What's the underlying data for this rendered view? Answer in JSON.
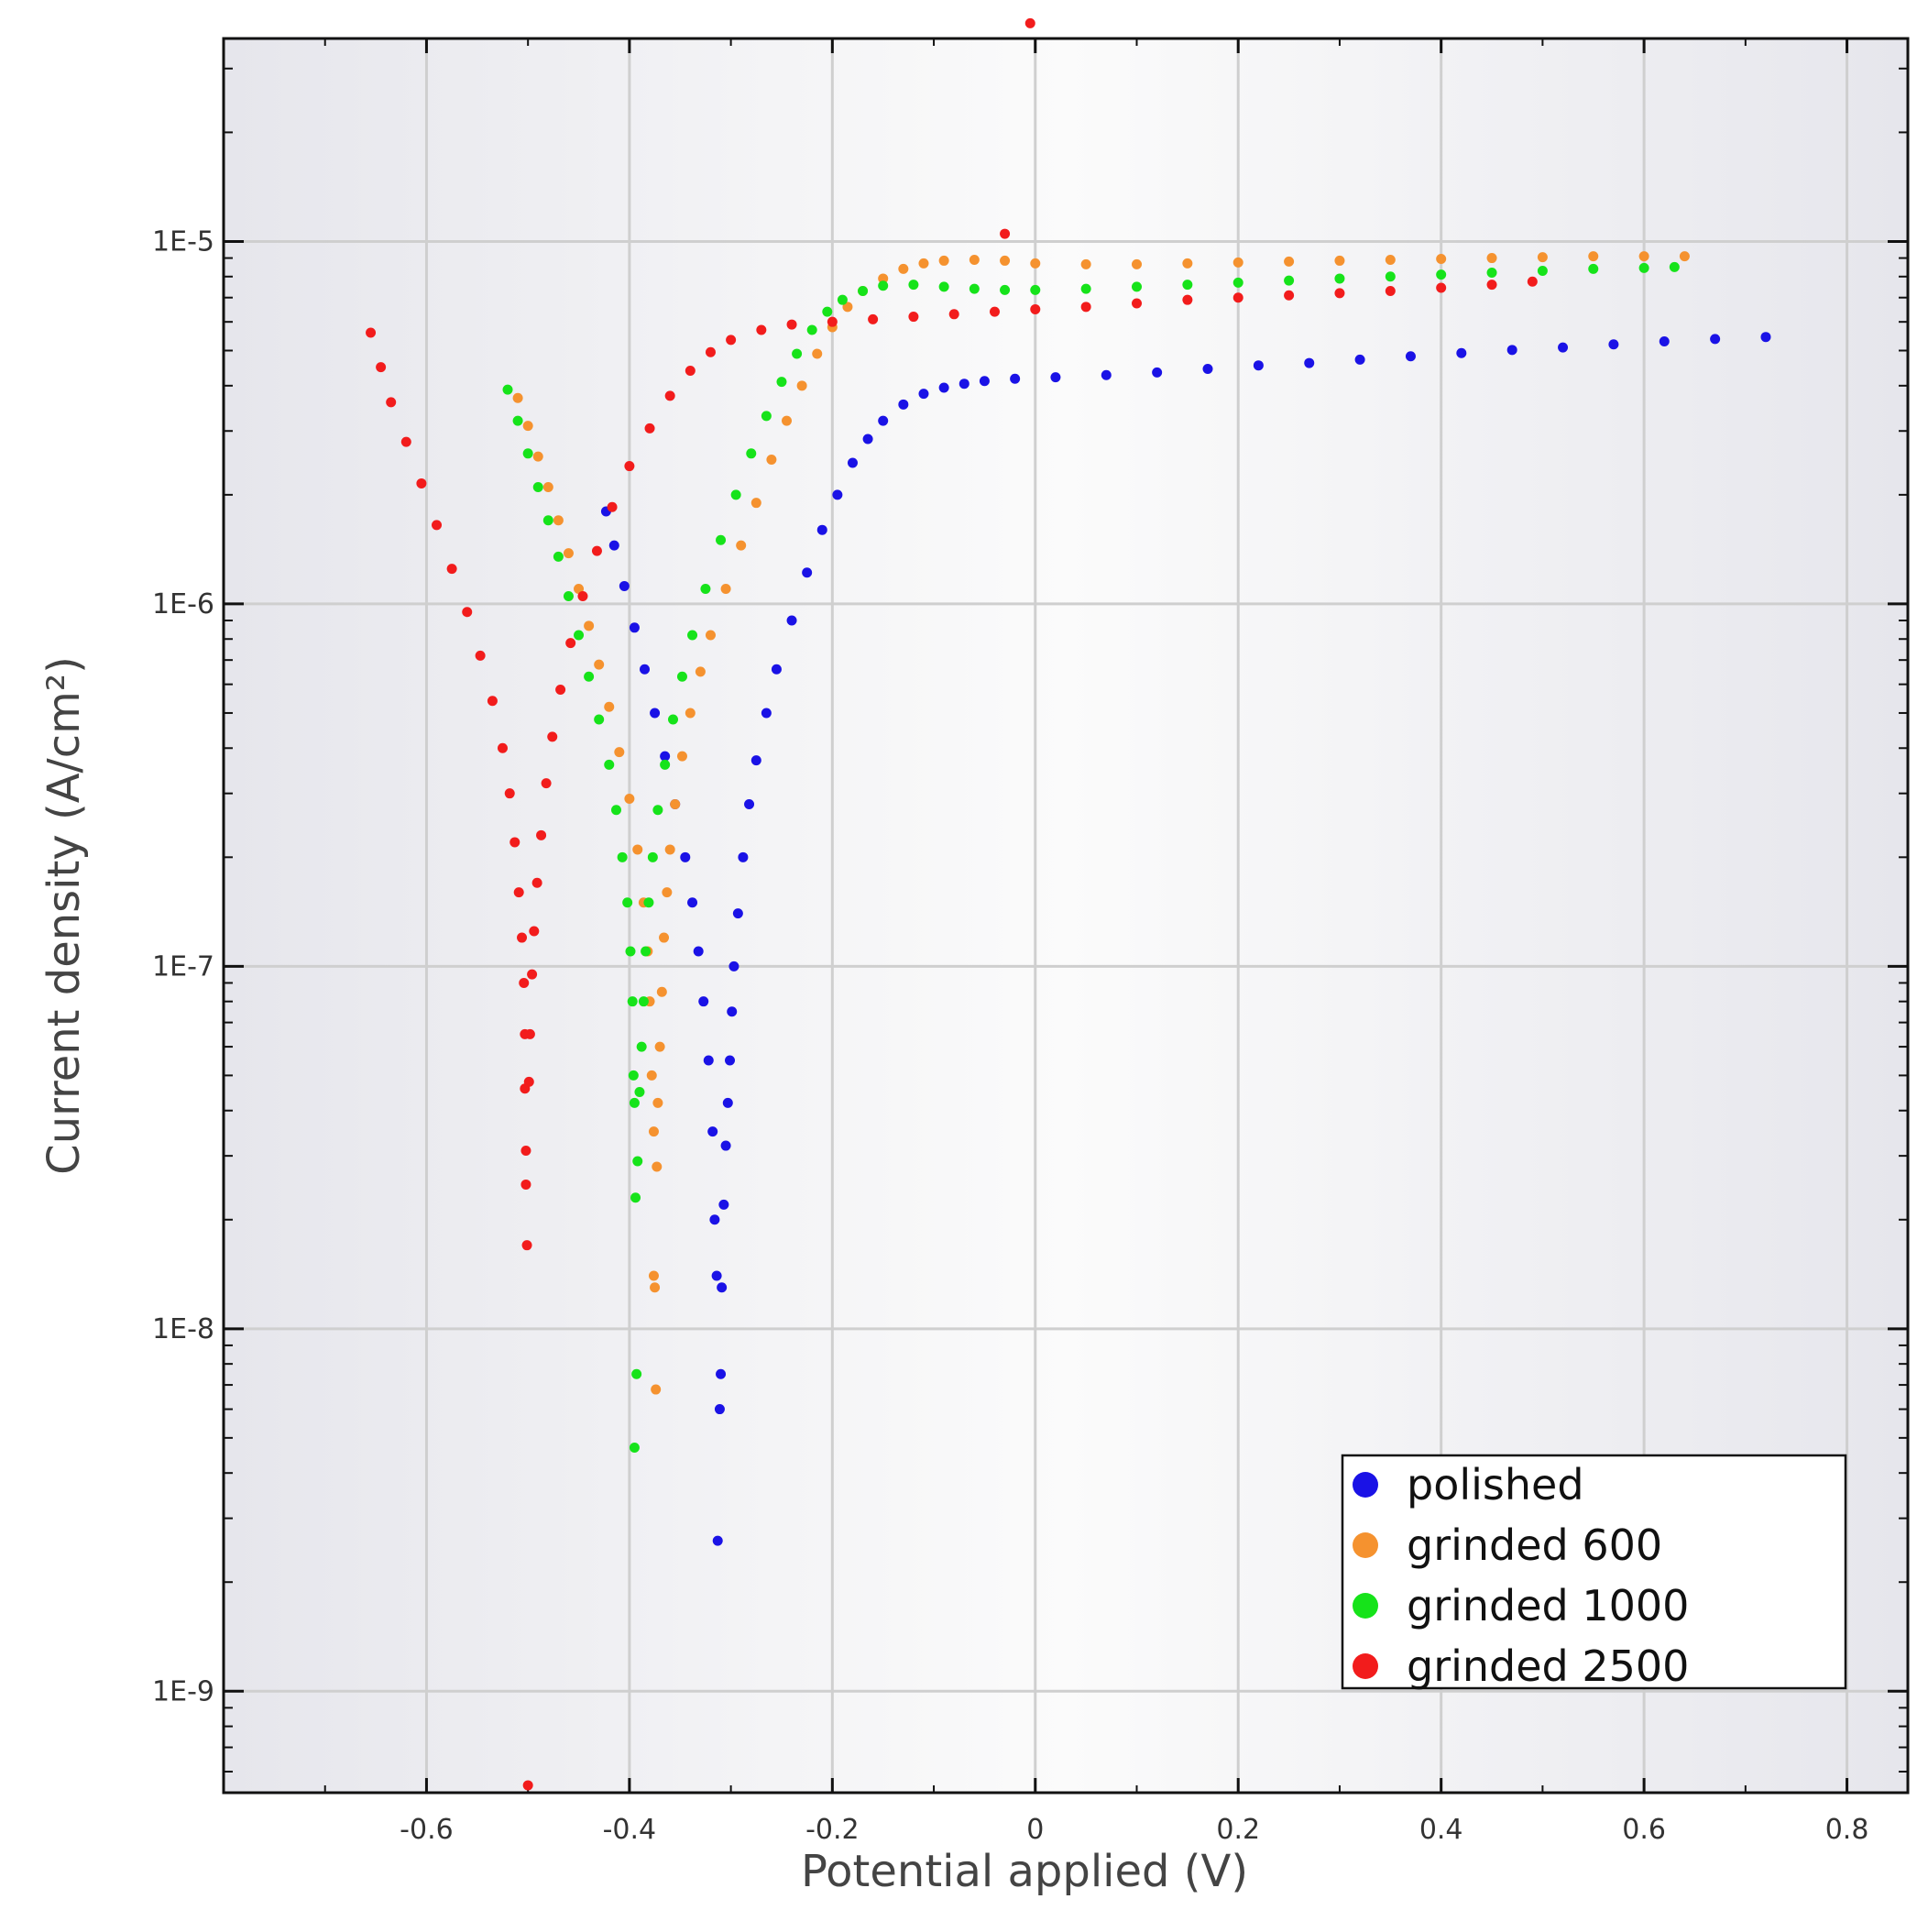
{
  "chart_data": {
    "type": "scatter",
    "title": "",
    "xlabel": "Potential applied (V)",
    "ylabel": "Current density (A/cm²)",
    "xlim": [
      -0.8,
      0.86
    ],
    "ylim_log10": [
      -9.28,
      -4.44
    ],
    "y_scale": "log",
    "x_ticks": [
      {
        "value": -0.6,
        "label": "-0.6"
      },
      {
        "value": -0.4,
        "label": "-0.4"
      },
      {
        "value": -0.2,
        "label": "-0.2"
      },
      {
        "value": 0,
        "label": "0"
      },
      {
        "value": 0.2,
        "label": "0.2"
      },
      {
        "value": 0.4,
        "label": "0.4"
      },
      {
        "value": 0.6,
        "label": "0.6"
      },
      {
        "value": 0.8,
        "label": "0.8"
      }
    ],
    "y_ticks": [
      {
        "value": 1e-05,
        "label": "1E-5"
      },
      {
        "value": 1e-06,
        "label": "1E-6"
      },
      {
        "value": 1e-07,
        "label": "1E-7"
      },
      {
        "value": 1e-08,
        "label": "1E-8"
      },
      {
        "value": 1e-09,
        "label": "1E-9"
      }
    ],
    "grid": true,
    "legend_position": "bottom-right",
    "series": [
      {
        "name": "polished",
        "color": "#1a12e6",
        "points": [
          [
            -0.423,
            1.8e-06
          ],
          [
            -0.415,
            1.45e-06
          ],
          [
            -0.405,
            1.12e-06
          ],
          [
            -0.395,
            8.6e-07
          ],
          [
            -0.385,
            6.6e-07
          ],
          [
            -0.375,
            5e-07
          ],
          [
            -0.365,
            3.8e-07
          ],
          [
            -0.355,
            2.8e-07
          ],
          [
            -0.345,
            2e-07
          ],
          [
            -0.338,
            1.5e-07
          ],
          [
            -0.332,
            1.1e-07
          ],
          [
            -0.327,
            8e-08
          ],
          [
            -0.322,
            5.5e-08
          ],
          [
            -0.318,
            3.5e-08
          ],
          [
            -0.316,
            2e-08
          ],
          [
            -0.314,
            1.4e-08
          ],
          [
            -0.313,
            2.6e-09
          ],
          [
            -0.311,
            6e-09
          ],
          [
            -0.31,
            7.5e-09
          ],
          [
            -0.309,
            1.3e-08
          ],
          [
            -0.307,
            2.2e-08
          ],
          [
            -0.305,
            3.2e-08
          ],
          [
            -0.303,
            4.2e-08
          ],
          [
            -0.301,
            5.5e-08
          ],
          [
            -0.299,
            7.5e-08
          ],
          [
            -0.297,
            1e-07
          ],
          [
            -0.293,
            1.4e-07
          ],
          [
            -0.288,
            2e-07
          ],
          [
            -0.282,
            2.8e-07
          ],
          [
            -0.275,
            3.7e-07
          ],
          [
            -0.265,
            5e-07
          ],
          [
            -0.255,
            6.6e-07
          ],
          [
            -0.24,
            9e-07
          ],
          [
            -0.225,
            1.22e-06
          ],
          [
            -0.21,
            1.6e-06
          ],
          [
            -0.195,
            2e-06
          ],
          [
            -0.18,
            2.45e-06
          ],
          [
            -0.165,
            2.85e-06
          ],
          [
            -0.15,
            3.2e-06
          ],
          [
            -0.13,
            3.55e-06
          ],
          [
            -0.11,
            3.8e-06
          ],
          [
            -0.09,
            3.95e-06
          ],
          [
            -0.07,
            4.05e-06
          ],
          [
            -0.05,
            4.12e-06
          ],
          [
            -0.02,
            4.18e-06
          ],
          [
            0.02,
            4.22e-06
          ],
          [
            0.07,
            4.28e-06
          ],
          [
            0.12,
            4.35e-06
          ],
          [
            0.17,
            4.45e-06
          ],
          [
            0.22,
            4.55e-06
          ],
          [
            0.27,
            4.62e-06
          ],
          [
            0.32,
            4.72e-06
          ],
          [
            0.37,
            4.82e-06
          ],
          [
            0.42,
            4.92e-06
          ],
          [
            0.47,
            5.02e-06
          ],
          [
            0.52,
            5.1e-06
          ],
          [
            0.57,
            5.2e-06
          ],
          [
            0.62,
            5.3e-06
          ],
          [
            0.67,
            5.38e-06
          ],
          [
            0.72,
            5.45e-06
          ]
        ]
      },
      {
        "name": "grinded 600",
        "color": "#f5922f",
        "points": [
          [
            -0.51,
            3.7e-06
          ],
          [
            -0.5,
            3.1e-06
          ],
          [
            -0.49,
            2.55e-06
          ],
          [
            -0.48,
            2.1e-06
          ],
          [
            -0.47,
            1.7e-06
          ],
          [
            -0.46,
            1.38e-06
          ],
          [
            -0.45,
            1.1e-06
          ],
          [
            -0.44,
            8.7e-07
          ],
          [
            -0.43,
            6.8e-07
          ],
          [
            -0.42,
            5.2e-07
          ],
          [
            -0.41,
            3.9e-07
          ],
          [
            -0.4,
            2.9e-07
          ],
          [
            -0.392,
            2.1e-07
          ],
          [
            -0.386,
            1.5e-07
          ],
          [
            -0.382,
            1.1e-07
          ],
          [
            -0.38,
            8e-08
          ],
          [
            -0.378,
            5e-08
          ],
          [
            -0.376,
            3.5e-08
          ],
          [
            -0.376,
            1.4e-08
          ],
          [
            -0.375,
            1.3e-08
          ],
          [
            -0.374,
            6.8e-09
          ],
          [
            -0.373,
            2.8e-08
          ],
          [
            -0.372,
            4.2e-08
          ],
          [
            -0.37,
            6e-08
          ],
          [
            -0.368,
            8.5e-08
          ],
          [
            -0.366,
            1.2e-07
          ],
          [
            -0.363,
            1.6e-07
          ],
          [
            -0.36,
            2.1e-07
          ],
          [
            -0.355,
            2.8e-07
          ],
          [
            -0.348,
            3.8e-07
          ],
          [
            -0.34,
            5e-07
          ],
          [
            -0.33,
            6.5e-07
          ],
          [
            -0.32,
            8.2e-07
          ],
          [
            -0.305,
            1.1e-06
          ],
          [
            -0.29,
            1.45e-06
          ],
          [
            -0.275,
            1.9e-06
          ],
          [
            -0.26,
            2.5e-06
          ],
          [
            -0.245,
            3.2e-06
          ],
          [
            -0.23,
            4e-06
          ],
          [
            -0.215,
            4.9e-06
          ],
          [
            -0.2,
            5.8e-06
          ],
          [
            -0.185,
            6.6e-06
          ],
          [
            -0.17,
            7.3e-06
          ],
          [
            -0.15,
            7.9e-06
          ],
          [
            -0.13,
            8.4e-06
          ],
          [
            -0.11,
            8.7e-06
          ],
          [
            -0.09,
            8.85e-06
          ],
          [
            -0.06,
            8.9e-06
          ],
          [
            -0.03,
            8.85e-06
          ],
          [
            0.0,
            8.7e-06
          ],
          [
            0.05,
            8.65e-06
          ],
          [
            0.1,
            8.65e-06
          ],
          [
            0.15,
            8.7e-06
          ],
          [
            0.2,
            8.75e-06
          ],
          [
            0.25,
            8.8e-06
          ],
          [
            0.3,
            8.85e-06
          ],
          [
            0.35,
            8.9e-06
          ],
          [
            0.4,
            8.95e-06
          ],
          [
            0.45,
            9e-06
          ],
          [
            0.5,
            9.05e-06
          ],
          [
            0.55,
            9.1e-06
          ],
          [
            0.6,
            9.1e-06
          ],
          [
            0.64,
            9.1e-06
          ]
        ]
      },
      {
        "name": "grinded 1000",
        "color": "#16e31a",
        "points": [
          [
            -0.52,
            3.9e-06
          ],
          [
            -0.51,
            3.2e-06
          ],
          [
            -0.5,
            2.6e-06
          ],
          [
            -0.49,
            2.1e-06
          ],
          [
            -0.48,
            1.7e-06
          ],
          [
            -0.47,
            1.35e-06
          ],
          [
            -0.46,
            1.05e-06
          ],
          [
            -0.45,
            8.2e-07
          ],
          [
            -0.44,
            6.3e-07
          ],
          [
            -0.43,
            4.8e-07
          ],
          [
            -0.42,
            3.6e-07
          ],
          [
            -0.413,
            2.7e-07
          ],
          [
            -0.407,
            2e-07
          ],
          [
            -0.402,
            1.5e-07
          ],
          [
            -0.399,
            1.1e-07
          ],
          [
            -0.397,
            8e-08
          ],
          [
            -0.396,
            5e-08
          ],
          [
            -0.395,
            4.2e-08
          ],
          [
            -0.395,
            4.7e-09
          ],
          [
            -0.394,
            2.3e-08
          ],
          [
            -0.393,
            7.5e-09
          ],
          [
            -0.392,
            2.9e-08
          ],
          [
            -0.39,
            4.5e-08
          ],
          [
            -0.388,
            6e-08
          ],
          [
            -0.386,
            8e-08
          ],
          [
            -0.384,
            1.1e-07
          ],
          [
            -0.381,
            1.5e-07
          ],
          [
            -0.377,
            2e-07
          ],
          [
            -0.372,
            2.7e-07
          ],
          [
            -0.365,
            3.6e-07
          ],
          [
            -0.357,
            4.8e-07
          ],
          [
            -0.348,
            6.3e-07
          ],
          [
            -0.338,
            8.2e-07
          ],
          [
            -0.325,
            1.1e-06
          ],
          [
            -0.31,
            1.5e-06
          ],
          [
            -0.295,
            2e-06
          ],
          [
            -0.28,
            2.6e-06
          ],
          [
            -0.265,
            3.3e-06
          ],
          [
            -0.25,
            4.1e-06
          ],
          [
            -0.235,
            4.9e-06
          ],
          [
            -0.22,
            5.7e-06
          ],
          [
            -0.205,
            6.4e-06
          ],
          [
            -0.19,
            6.9e-06
          ],
          [
            -0.17,
            7.3e-06
          ],
          [
            -0.15,
            7.55e-06
          ],
          [
            -0.12,
            7.6e-06
          ],
          [
            -0.09,
            7.5e-06
          ],
          [
            -0.06,
            7.4e-06
          ],
          [
            -0.03,
            7.35e-06
          ],
          [
            0.0,
            7.35e-06
          ],
          [
            0.05,
            7.4e-06
          ],
          [
            0.1,
            7.5e-06
          ],
          [
            0.15,
            7.6e-06
          ],
          [
            0.2,
            7.7e-06
          ],
          [
            0.25,
            7.8e-06
          ],
          [
            0.3,
            7.9e-06
          ],
          [
            0.35,
            8e-06
          ],
          [
            0.4,
            8.1e-06
          ],
          [
            0.45,
            8.2e-06
          ],
          [
            0.5,
            8.3e-06
          ],
          [
            0.55,
            8.4e-06
          ],
          [
            0.6,
            8.45e-06
          ],
          [
            0.63,
            8.5e-06
          ]
        ]
      },
      {
        "name": "grinded 2500",
        "color": "#f21c1c",
        "points": [
          [
            -0.655,
            5.6e-06
          ],
          [
            -0.645,
            4.5e-06
          ],
          [
            -0.635,
            3.6e-06
          ],
          [
            -0.62,
            2.8e-06
          ],
          [
            -0.605,
            2.15e-06
          ],
          [
            -0.59,
            1.65e-06
          ],
          [
            -0.575,
            1.25e-06
          ],
          [
            -0.56,
            9.5e-07
          ],
          [
            -0.547,
            7.2e-07
          ],
          [
            -0.535,
            5.4e-07
          ],
          [
            -0.525,
            4e-07
          ],
          [
            -0.518,
            3e-07
          ],
          [
            -0.513,
            2.2e-07
          ],
          [
            -0.509,
            1.6e-07
          ],
          [
            -0.506,
            1.2e-07
          ],
          [
            -0.504,
            9e-08
          ],
          [
            -0.503,
            6.5e-08
          ],
          [
            -0.503,
            4.6e-08
          ],
          [
            -0.502,
            3.1e-08
          ],
          [
            -0.502,
            2.5e-08
          ],
          [
            -0.501,
            1.7e-08
          ],
          [
            -0.5,
            5.5e-10
          ],
          [
            -0.499,
            4.8e-08
          ],
          [
            -0.498,
            6.5e-08
          ],
          [
            -0.496,
            9.5e-08
          ],
          [
            -0.494,
            1.25e-07
          ],
          [
            -0.491,
            1.7e-07
          ],
          [
            -0.487,
            2.3e-07
          ],
          [
            -0.482,
            3.2e-07
          ],
          [
            -0.476,
            4.3e-07
          ],
          [
            -0.468,
            5.8e-07
          ],
          [
            -0.458,
            7.8e-07
          ],
          [
            -0.446,
            1.05e-06
          ],
          [
            -0.432,
            1.4e-06
          ],
          [
            -0.417,
            1.85e-06
          ],
          [
            -0.4,
            2.4e-06
          ],
          [
            -0.38,
            3.05e-06
          ],
          [
            -0.36,
            3.75e-06
          ],
          [
            -0.34,
            4.4e-06
          ],
          [
            -0.32,
            4.95e-06
          ],
          [
            -0.3,
            5.35e-06
          ],
          [
            -0.27,
            5.7e-06
          ],
          [
            -0.24,
            5.9e-06
          ],
          [
            -0.2,
            6e-06
          ],
          [
            -0.16,
            6.1e-06
          ],
          [
            -0.12,
            6.2e-06
          ],
          [
            -0.08,
            6.3e-06
          ],
          [
            -0.04,
            6.4e-06
          ],
          [
            -0.03,
            1.05e-05
          ],
          [
            -0.005,
            4e-05
          ],
          [
            0.0,
            6.5e-06
          ],
          [
            0.05,
            6.6e-06
          ],
          [
            0.1,
            6.75e-06
          ],
          [
            0.15,
            6.9e-06
          ],
          [
            0.2,
            7e-06
          ],
          [
            0.25,
            7.1e-06
          ],
          [
            0.3,
            7.2e-06
          ],
          [
            0.35,
            7.3e-06
          ],
          [
            0.4,
            7.45e-06
          ],
          [
            0.45,
            7.6e-06
          ],
          [
            0.49,
            7.75e-06
          ]
        ]
      }
    ]
  }
}
